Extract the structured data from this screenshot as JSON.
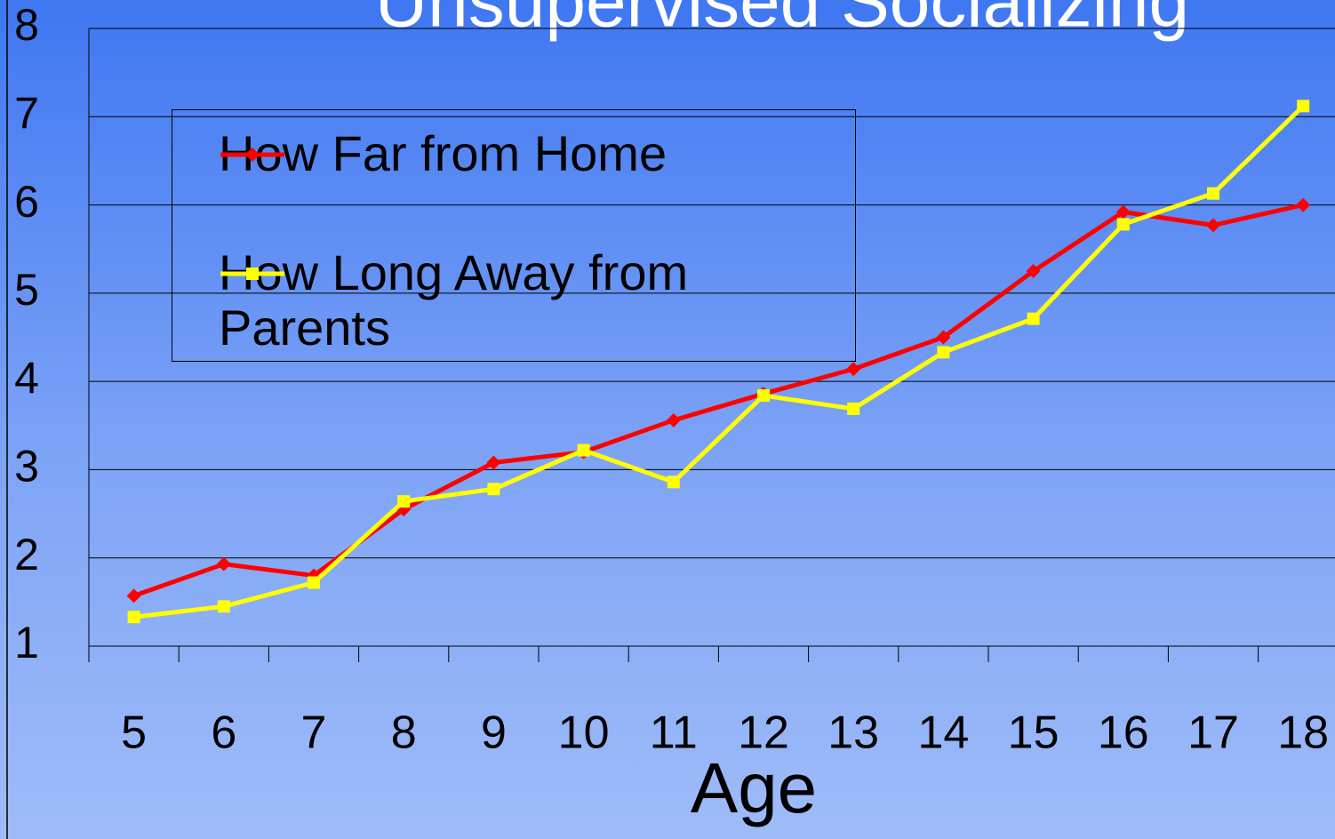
{
  "chart_data": {
    "type": "line",
    "title": "Unsupervised Socializing",
    "x_label": "Age",
    "categories": [
      5,
      6,
      7,
      8,
      9,
      10,
      11,
      12,
      13,
      14,
      15,
      16,
      17,
      18
    ],
    "series": [
      {
        "name": "How Far from Home",
        "color": "#ff0000",
        "marker": "diamond",
        "values": [
          1.57,
          1.93,
          1.8,
          2.55,
          3.08,
          3.2,
          3.56,
          3.86,
          4.14,
          4.5,
          5.25,
          5.92,
          5.77,
          6.0
        ]
      },
      {
        "name": "How Long Away from Parents",
        "color": "#ffff00",
        "marker": "square",
        "values": [
          1.33,
          1.45,
          1.72,
          2.64,
          2.78,
          3.22,
          2.86,
          3.84,
          3.69,
          4.33,
          4.71,
          5.78,
          6.13,
          7.12
        ]
      }
    ],
    "ylim": [
      1,
      8
    ],
    "yticks": [
      1,
      2,
      3,
      4,
      5,
      6,
      7,
      8
    ],
    "grid": true
  }
}
